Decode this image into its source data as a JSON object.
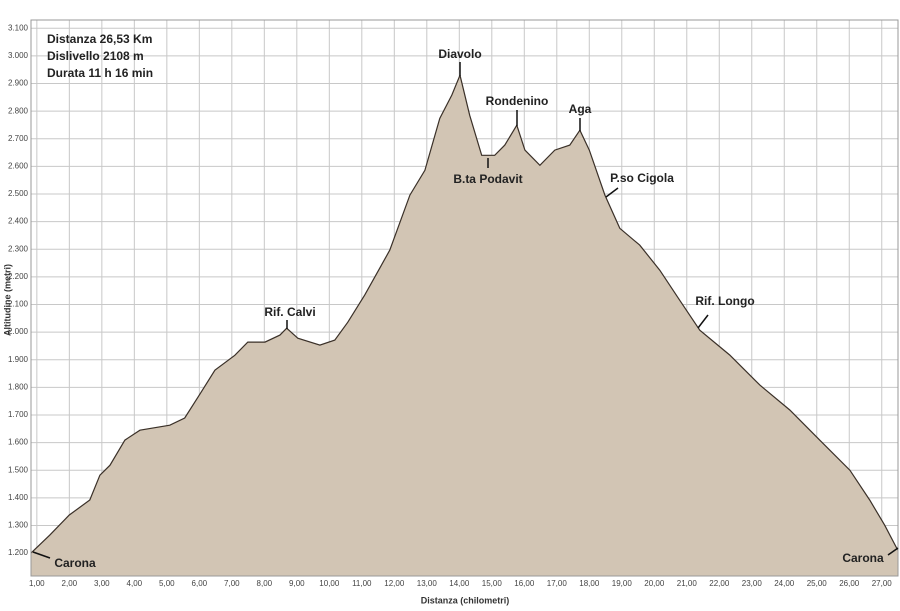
{
  "chart_data": {
    "type": "area",
    "info": [
      "Distanza 26,53 Km",
      "Dislivello 2108 m",
      "Durata      11 h   16 min"
    ],
    "x_label": "Distanza (chilometri)",
    "y_label": "Altitudine (metri)",
    "color": "#d2c5b4",
    "line_color": "#3a3028",
    "grid": true,
    "xlim": [
      0.82,
      27.5
    ],
    "ylim": [
      1117,
      3130
    ],
    "xticks": [
      {
        "value": 1,
        "label": "1,00"
      },
      {
        "value": 2,
        "label": "2,00"
      },
      {
        "value": 3,
        "label": "3,00"
      },
      {
        "value": 4,
        "label": "4,00"
      },
      {
        "value": 5,
        "label": "5,00"
      },
      {
        "value": 6,
        "label": "6,00"
      },
      {
        "value": 7,
        "label": "7,00"
      },
      {
        "value": 8,
        "label": "8,00"
      },
      {
        "value": 9,
        "label": "9,00"
      },
      {
        "value": 10,
        "label": "10,00"
      },
      {
        "value": 11,
        "label": "11,00"
      },
      {
        "value": 12,
        "label": "12,00"
      },
      {
        "value": 13,
        "label": "13,00"
      },
      {
        "value": 14,
        "label": "14,00"
      },
      {
        "value": 15,
        "label": "15,00"
      },
      {
        "value": 16,
        "label": "16,00"
      },
      {
        "value": 17,
        "label": "17,00"
      },
      {
        "value": 18,
        "label": "18,00"
      },
      {
        "value": 19,
        "label": "19,00"
      },
      {
        "value": 20,
        "label": "20,00"
      },
      {
        "value": 21,
        "label": "21,00"
      },
      {
        "value": 22,
        "label": "22,00"
      },
      {
        "value": 23,
        "label": "23,00"
      },
      {
        "value": 24,
        "label": "24,00"
      },
      {
        "value": 25,
        "label": "25,00"
      },
      {
        "value": 26,
        "label": "26,00"
      },
      {
        "value": 27,
        "label": "27,00"
      }
    ],
    "yticks": [
      {
        "value": 1200,
        "label": "1.200"
      },
      {
        "value": 1300,
        "label": "1.300"
      },
      {
        "value": 1400,
        "label": "1.400"
      },
      {
        "value": 1500,
        "label": "1.500"
      },
      {
        "value": 1600,
        "label": "1.600"
      },
      {
        "value": 1700,
        "label": "1.700"
      },
      {
        "value": 1800,
        "label": "1.800"
      },
      {
        "value": 1900,
        "label": "1.900"
      },
      {
        "value": 2000,
        "label": "2.000"
      },
      {
        "value": 2100,
        "label": "2.100"
      },
      {
        "value": 2200,
        "label": "2.200"
      },
      {
        "value": 2300,
        "label": "2.300"
      },
      {
        "value": 2400,
        "label": "2.400"
      },
      {
        "value": 2500,
        "label": "2.500"
      },
      {
        "value": 2600,
        "label": "2.600"
      },
      {
        "value": 2700,
        "label": "2.700"
      },
      {
        "value": 2800,
        "label": "2.800"
      },
      {
        "value": 2900,
        "label": "2.900"
      },
      {
        "value": 3000,
        "label": "3.000"
      },
      {
        "value": 3100,
        "label": "3.100"
      }
    ],
    "x": [
      0.82,
      1.4,
      2.0,
      2.63,
      2.94,
      3.25,
      3.71,
      4.17,
      5.09,
      5.55,
      6.0,
      6.48,
      7.09,
      7.49,
      8.02,
      8.48,
      8.69,
      9.03,
      9.71,
      10.17,
      10.57,
      11.09,
      11.86,
      12.48,
      12.94,
      13.4,
      13.77,
      14.02,
      14.32,
      14.69,
      15.09,
      15.4,
      15.77,
      16.02,
      16.48,
      16.94,
      17.4,
      17.71,
      18.0,
      18.48,
      18.94,
      19.55,
      20.17,
      20.78,
      21.4,
      22.32,
      23.25,
      24.17,
      25.09,
      26.02,
      26.63,
      27.09,
      27.49
    ],
    "values": [
      1200,
      1265,
      1338,
      1392,
      1482,
      1518,
      1609,
      1645,
      1663,
      1689,
      1772,
      1862,
      1916,
      1964,
      1964,
      1989,
      2014,
      1978,
      1953,
      1971,
      2036,
      2134,
      2297,
      2496,
      2586,
      2774,
      2858,
      2930,
      2785,
      2640,
      2640,
      2677,
      2749,
      2659,
      2604,
      2659,
      2677,
      2731,
      2659,
      2496,
      2376,
      2315,
      2224,
      2116,
      2007,
      1917,
      1808,
      1718,
      1609,
      1500,
      1392,
      1301,
      1211
    ],
    "annotations": [
      "Diavolo",
      "Rondenino",
      "Aga",
      "B.ta Podavit",
      "P.so Cigola",
      "Rif. Calvi",
      "Rif. Longo",
      "Carona",
      "Carona"
    ]
  }
}
